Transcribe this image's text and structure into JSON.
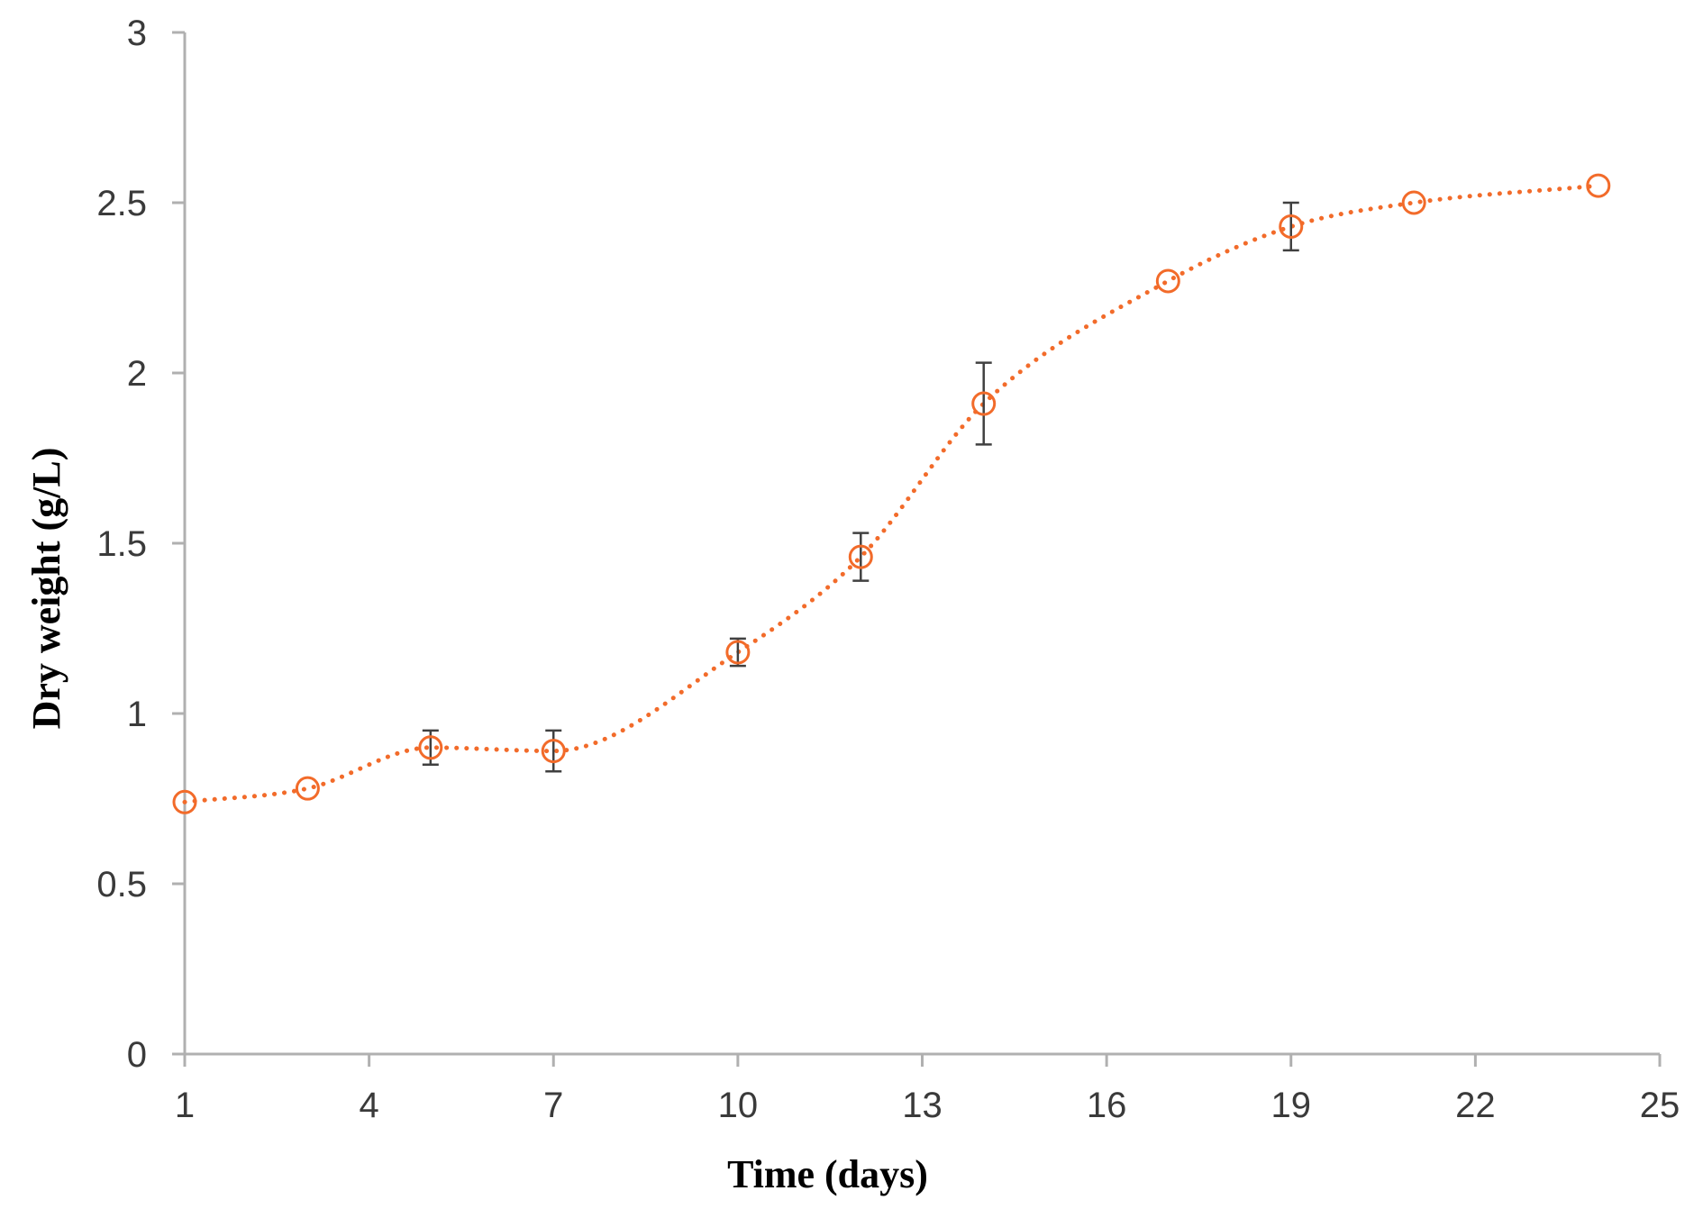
{
  "chart_data": {
    "type": "scatter",
    "title": "",
    "xlabel": "Time (days)",
    "ylabel": "Dry weight (g/L)",
    "xlim": [
      1,
      25
    ],
    "ylim": [
      0,
      3
    ],
    "x_ticks": [
      "1",
      "4",
      "7",
      "10",
      "13",
      "16",
      "19",
      "22",
      "25"
    ],
    "y_ticks": [
      "0",
      "0.5",
      "1",
      "1.5",
      "2",
      "2.5",
      "3"
    ],
    "grid": false,
    "legend": "none",
    "marker": "open-circle",
    "trendline": "dotted smooth",
    "colors": {
      "series": "#F26B2A",
      "error_bars": "#404040",
      "axis": "#b0b0b0"
    },
    "series": [
      {
        "x": [
          1,
          3,
          5,
          7,
          10,
          12,
          14,
          17,
          19,
          21,
          24
        ],
        "y": [
          0.74,
          0.78,
          0.9,
          0.89,
          1.18,
          1.46,
          1.91,
          2.27,
          2.43,
          2.5,
          2.55
        ],
        "error": [
          0,
          0,
          0.05,
          0.06,
          0.04,
          0.07,
          0.12,
          0,
          0.07,
          0,
          0
        ]
      }
    ]
  }
}
